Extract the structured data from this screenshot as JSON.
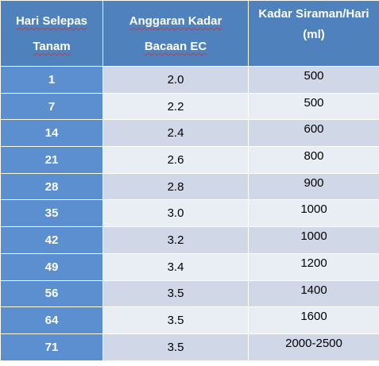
{
  "table": {
    "header": {
      "col1_line1": "Hari Selepas",
      "col1_line2": "Tanam",
      "col2_line1": "Anggaran Kadar",
      "col2_line2": "Bacaan EC",
      "col3_line1": "Kadar Siraman/Hari",
      "col3_line2": "(ml)"
    },
    "rows": [
      {
        "day": "1",
        "ec": "2.0",
        "siraman": "500"
      },
      {
        "day": "7",
        "ec": "2.2",
        "siraman": "500"
      },
      {
        "day": "14",
        "ec": "2.4",
        "siraman": "600"
      },
      {
        "day": "21",
        "ec": "2.6",
        "siraman": "800"
      },
      {
        "day": "28",
        "ec": "2.8",
        "siraman": "900"
      },
      {
        "day": "35",
        "ec": "3.0",
        "siraman": "1000"
      },
      {
        "day": "42",
        "ec": "3.2",
        "siraman": "1000"
      },
      {
        "day": "49",
        "ec": "3.4",
        "siraman": "1200"
      },
      {
        "day": "56",
        "ec": "3.5",
        "siraman": "1400"
      },
      {
        "day": "64",
        "ec": "3.5",
        "siraman": "1600"
      },
      {
        "day": "71",
        "ec": "3.5",
        "siraman": "2000-2500"
      }
    ],
    "colors": {
      "header_bg": "#4f81bd",
      "first_col_bg": "#5b8fd0",
      "band_dark": "#d0d8e8",
      "band_light": "#e9edf4"
    }
  }
}
